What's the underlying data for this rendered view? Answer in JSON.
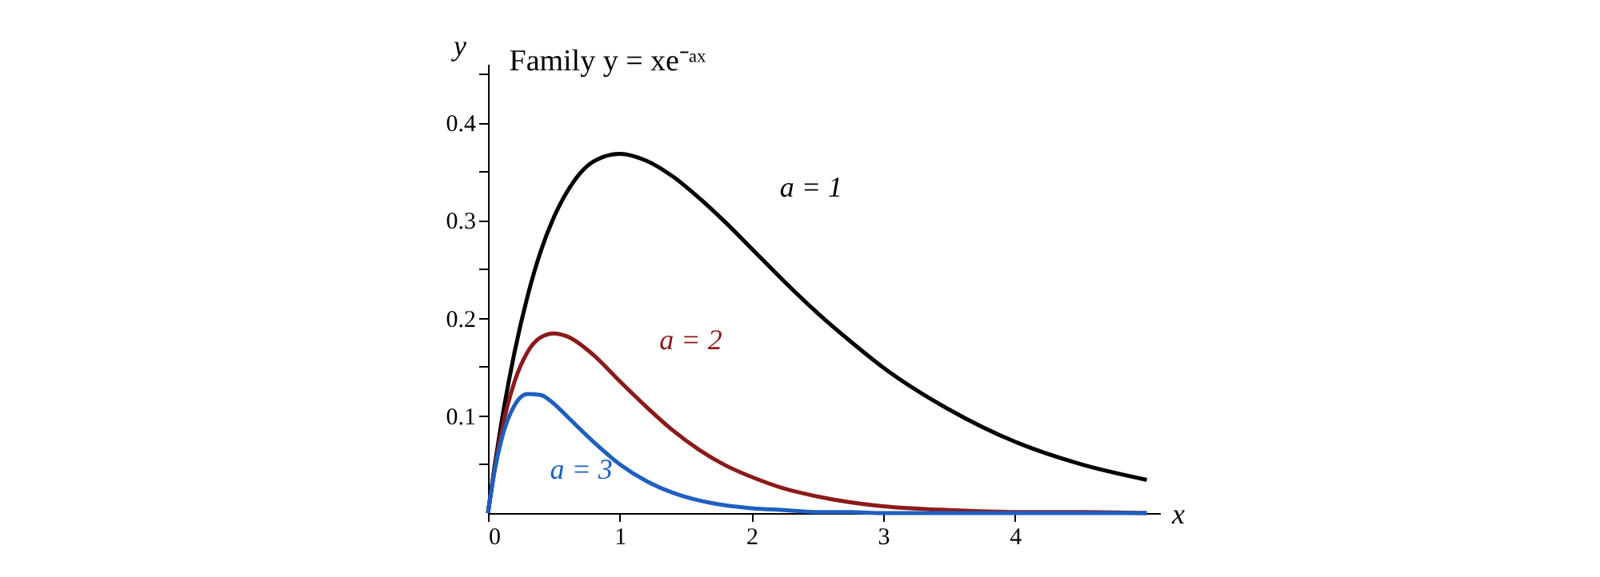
{
  "chart_data": {
    "type": "line",
    "title": "Family  y = xe⁻ᵃˣ",
    "xlabel": "x",
    "ylabel": "y",
    "x": [
      0,
      0.05,
      0.1,
      0.2,
      0.3,
      0.4,
      0.5,
      0.6,
      0.8,
      1,
      1.2,
      1.4,
      1.6,
      1.8,
      2,
      2.25,
      2.5,
      2.75,
      3,
      3.5,
      4,
      4.5,
      5
    ],
    "series": [
      {
        "name": "a = 1",
        "color": "#000000",
        "values": [
          0,
          0.048,
          0.091,
          0.164,
          0.222,
          0.268,
          0.303,
          0.329,
          0.36,
          0.368,
          0.361,
          0.345,
          0.323,
          0.298,
          0.271,
          0.237,
          0.205,
          0.176,
          0.149,
          0.106,
          0.073,
          0.05,
          0.034
        ]
      },
      {
        "name": "a = 2",
        "color": "#8b1a1a",
        "values": [
          0,
          0.045,
          0.082,
          0.134,
          0.165,
          0.18,
          0.184,
          0.181,
          0.162,
          0.135,
          0.109,
          0.085,
          0.065,
          0.049,
          0.037,
          0.025,
          0.017,
          0.011,
          0.007,
          0.003,
          0.001,
          0.001,
          0
        ]
      },
      {
        "name": "a = 3",
        "color": "#1f5fbf",
        "values": [
          0,
          0.043,
          0.074,
          0.11,
          0.122,
          0.121,
          0.112,
          0.099,
          0.073,
          0.05,
          0.033,
          0.021,
          0.013,
          0.008,
          0.005,
          0.003,
          0.001,
          0.001,
          0,
          0,
          0,
          0,
          0
        ]
      }
    ],
    "xlim": [
      0,
      5.1
    ],
    "ylim": [
      0,
      0.46
    ],
    "xticks": [
      {
        "value": 0,
        "label": "0"
      },
      1,
      2,
      3,
      4
    ],
    "yticks": [
      {
        "value": 0.05,
        "label": null
      },
      0.1,
      {
        "value": 0.15,
        "label": null
      },
      0.2,
      {
        "value": 0.25,
        "label": null
      },
      0.3,
      {
        "value": 0.35,
        "label": null
      },
      0.4,
      {
        "value": 0.45,
        "label": null
      }
    ],
    "grid": false,
    "legend": false,
    "marker": "none",
    "line_style": "solid"
  }
}
